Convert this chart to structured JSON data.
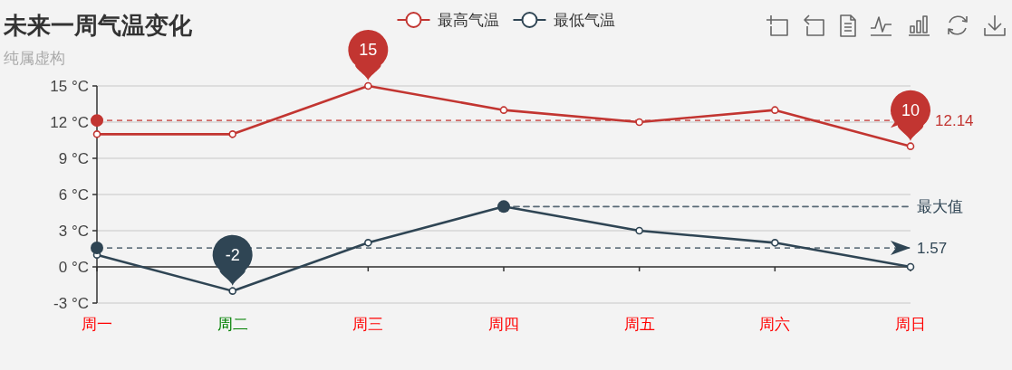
{
  "chart_data": {
    "type": "line",
    "title": "未来一周气温变化",
    "subtitle": "纯属虚构",
    "categories": [
      "周一",
      "周二",
      "周三",
      "周四",
      "周五",
      "周六",
      "周日"
    ],
    "series": [
      {
        "name": "最高气温",
        "color": "#c23531",
        "values": [
          11,
          11,
          15,
          13,
          12,
          13,
          10
        ]
      },
      {
        "name": "最低气温",
        "color": "#2f4554",
        "values": [
          1,
          -2,
          2,
          5,
          3,
          2,
          0
        ]
      },
      {
        "name": "最大值",
        "type": "line",
        "color": "#2f4554",
        "x": [
          "周四",
          "周日"
        ],
        "values": [
          5,
          5
        ],
        "line_style": "dashed"
      }
    ],
    "ylim": [
      -3,
      15
    ],
    "yticks": [
      {
        "value": -3,
        "label": "-3 °C"
      },
      {
        "value": 0,
        "label": "0 °C"
      },
      {
        "value": 3,
        "label": "3 °C"
      },
      {
        "value": 6,
        "label": "6 °C"
      },
      {
        "value": 9,
        "label": "9 °C"
      },
      {
        "value": 12,
        "label": "12 °C"
      },
      {
        "value": 15,
        "label": "15 °C"
      }
    ],
    "grid": "y",
    "legend": "top",
    "marker": "circle",
    "ref_lines": [
      {
        "axis": "y",
        "value": 12.14,
        "label": "12.14",
        "color": "#c23531",
        "line_style": "dashed"
      },
      {
        "axis": "y",
        "value": 1.57,
        "label": "1.57",
        "color": "#2f4554",
        "line_style": "dashed"
      }
    ],
    "annotations": [
      {
        "text": "15",
        "x": "周三",
        "y": 15
      },
      {
        "text": "10",
        "x": "周日",
        "y": 10
      },
      {
        "text": "-2",
        "x": "周二",
        "y": -2
      }
    ]
  }
}
